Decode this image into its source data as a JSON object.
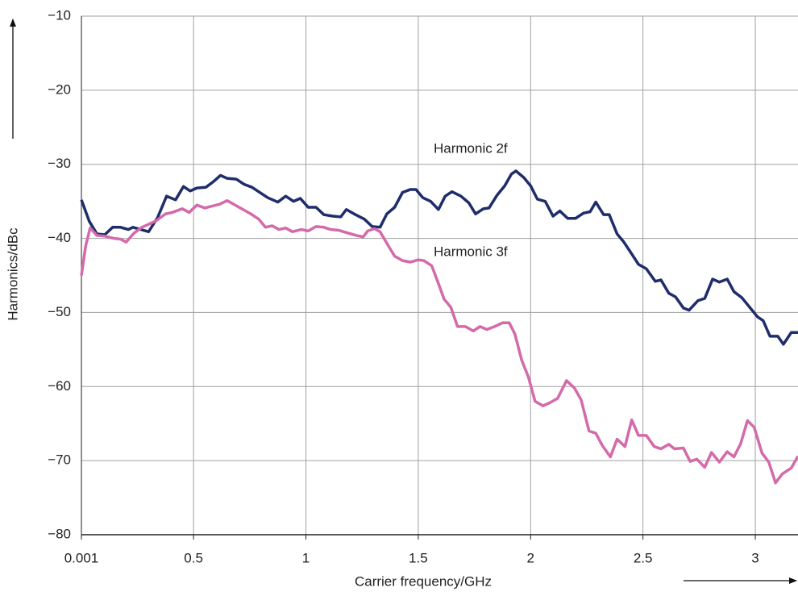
{
  "chart_data": {
    "type": "line",
    "xlabel": "Carrier frequency/GHz",
    "ylabel": "Harmonics/dBc",
    "xlim": [
      0.001,
      3.19
    ],
    "ylim": [
      -80,
      -10
    ],
    "xticks": [
      0.001,
      0.5,
      1,
      1.5,
      2,
      2.5,
      3
    ],
    "yticks": [
      {
        "value": -10,
        "label": "−10"
      },
      {
        "value": -20,
        "label": "−20"
      },
      {
        "value": -30,
        "label": "−30"
      },
      {
        "value": -40,
        "label": "−40"
      },
      {
        "value": -50,
        "label": "−50"
      },
      {
        "value": -60,
        "label": "−60"
      },
      {
        "value": -70,
        "label": "−70"
      },
      {
        "value": -80,
        "label": "−80"
      }
    ],
    "grid": true,
    "series": [
      {
        "name": "Harmonic 2f",
        "color": "#1f2d6b",
        "x": [
          0.001,
          0.036,
          0.07,
          0.105,
          0.14,
          0.175,
          0.21,
          0.23,
          0.265,
          0.3,
          0.34,
          0.38,
          0.42,
          0.455,
          0.485,
          0.515,
          0.555,
          0.59,
          0.62,
          0.65,
          0.69,
          0.725,
          0.76,
          0.8,
          0.83,
          0.875,
          0.91,
          0.945,
          0.975,
          1.01,
          1.045,
          1.08,
          1.12,
          1.155,
          1.18,
          1.215,
          1.26,
          1.295,
          1.33,
          1.36,
          1.395,
          1.43,
          1.465,
          1.49,
          1.52,
          1.555,
          1.59,
          1.62,
          1.65,
          1.69,
          1.725,
          1.755,
          1.79,
          1.815,
          1.85,
          1.885,
          1.915,
          1.935,
          1.97,
          2.0,
          2.03,
          2.065,
          2.1,
          2.13,
          2.165,
          2.2,
          2.235,
          2.265,
          2.29,
          2.325,
          2.35,
          2.385,
          2.415,
          2.45,
          2.48,
          2.515,
          2.555,
          2.58,
          2.615,
          2.645,
          2.68,
          2.705,
          2.745,
          2.775,
          2.81,
          2.84,
          2.875,
          2.905,
          2.94,
          2.975,
          3.01,
          3.035,
          3.065,
          3.1,
          3.125,
          3.16,
          3.19
        ],
        "values": [
          -34.8,
          -37.7,
          -39.4,
          -39.5,
          -38.5,
          -38.5,
          -38.8,
          -38.5,
          -38.8,
          -39.1,
          -37.2,
          -34.3,
          -34.8,
          -33,
          -33.6,
          -33.2,
          -33.1,
          -32.3,
          -31.5,
          -31.9,
          -32,
          -32.7,
          -33.1,
          -33.9,
          -34.5,
          -35.1,
          -34.3,
          -35,
          -34.6,
          -35.8,
          -35.8,
          -36.8,
          -37,
          -37.1,
          -36.1,
          -36.7,
          -37.4,
          -38.4,
          -38.5,
          -36.7,
          -35.8,
          -33.8,
          -33.4,
          -33.4,
          -34.5,
          -35,
          -36.1,
          -34.3,
          -33.7,
          -34.3,
          -35.2,
          -36.7,
          -36,
          -35.9,
          -34.2,
          -32.9,
          -31.3,
          -30.9,
          -31.8,
          -32.9,
          -34.7,
          -35,
          -37,
          -36.3,
          -37.3,
          -37.3,
          -36.6,
          -36.4,
          -35.1,
          -36.8,
          -36.8,
          -39.4,
          -40.5,
          -42.1,
          -43.5,
          -44.1,
          -45.8,
          -45.6,
          -47.4,
          -47.9,
          -49.4,
          -49.7,
          -48.4,
          -48.1,
          -45.5,
          -45.9,
          -45.5,
          -47.2,
          -48,
          -49.3,
          -50.6,
          -51.1,
          -53.2,
          -53.2,
          -54.3,
          -52.7,
          -52.7
        ]
      },
      {
        "name": "Harmonic 3f",
        "color": "#d46aaa",
        "x": [
          0.001,
          0.02,
          0.04,
          0.07,
          0.105,
          0.145,
          0.175,
          0.2,
          0.235,
          0.27,
          0.3,
          0.335,
          0.375,
          0.405,
          0.45,
          0.48,
          0.515,
          0.55,
          0.575,
          0.615,
          0.65,
          0.685,
          0.72,
          0.755,
          0.79,
          0.82,
          0.85,
          0.88,
          0.91,
          0.94,
          0.98,
          1.01,
          1.045,
          1.08,
          1.11,
          1.145,
          1.19,
          1.225,
          1.255,
          1.275,
          1.305,
          1.33,
          1.365,
          1.395,
          1.43,
          1.465,
          1.5,
          1.525,
          1.56,
          1.59,
          1.615,
          1.645,
          1.675,
          1.71,
          1.745,
          1.775,
          1.805,
          1.84,
          1.875,
          1.905,
          1.93,
          1.96,
          1.99,
          2.02,
          2.055,
          2.085,
          2.12,
          2.16,
          2.195,
          2.225,
          2.26,
          2.29,
          2.32,
          2.355,
          2.385,
          2.42,
          2.45,
          2.48,
          2.515,
          2.55,
          2.58,
          2.615,
          2.64,
          2.68,
          2.71,
          2.74,
          2.775,
          2.805,
          2.84,
          2.875,
          2.905,
          2.935,
          2.965,
          2.995,
          3.03,
          3.06,
          3.09,
          3.12,
          3.16,
          3.19
        ],
        "values": [
          -45,
          -41,
          -38.6,
          -39.6,
          -39.7,
          -40,
          -40.1,
          -40.5,
          -39.3,
          -38.5,
          -38.1,
          -37.6,
          -36.7,
          -36.5,
          -36,
          -36.5,
          -35.5,
          -35.9,
          -35.7,
          -35.4,
          -34.9,
          -35.5,
          -36.1,
          -36.7,
          -37.4,
          -38.5,
          -38.3,
          -38.8,
          -38.6,
          -39.1,
          -38.8,
          -39,
          -38.4,
          -38.5,
          -38.8,
          -38.9,
          -39.3,
          -39.6,
          -39.8,
          -39,
          -38.7,
          -39.1,
          -40.9,
          -42.4,
          -43,
          -43.2,
          -42.9,
          -43,
          -43.7,
          -46.1,
          -48.2,
          -49.3,
          -51.9,
          -51.9,
          -52.5,
          -51.9,
          -52.3,
          -51.9,
          -51.4,
          -51.4,
          -52.9,
          -56.4,
          -58.7,
          -62,
          -62.6,
          -62.2,
          -61.6,
          -59.2,
          -60.2,
          -61.8,
          -66,
          -66.3,
          -68,
          -69.5,
          -67.1,
          -68.1,
          -64.5,
          -66.6,
          -66.6,
          -68.1,
          -68.4,
          -67.8,
          -68.4,
          -68.3,
          -70.1,
          -69.8,
          -70.9,
          -68.9,
          -70.2,
          -68.8,
          -69.5,
          -67.7,
          -64.6,
          -65.5,
          -69,
          -70.2,
          -73,
          -71.8,
          -71,
          -69.4
        ]
      }
    ]
  }
}
